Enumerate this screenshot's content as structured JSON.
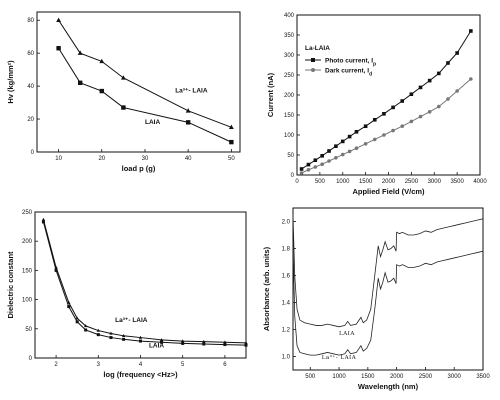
{
  "chart_data": [
    {
      "type": "line",
      "xlabel": "load p (g)",
      "ylabel": "Hv (kg/mm²)",
      "xlim": [
        5,
        52
      ],
      "ylim": [
        0,
        85
      ],
      "xticks": [
        10,
        20,
        30,
        40,
        50
      ],
      "yticks": [
        0,
        20,
        40,
        60,
        80
      ],
      "series": [
        {
          "name": "La³⁺- LAIA",
          "marker": "triangle",
          "x": [
            10,
            15,
            20,
            25,
            40,
            50
          ],
          "y": [
            80,
            60,
            55,
            45,
            25,
            15
          ]
        },
        {
          "name": "LAIA",
          "marker": "square",
          "x": [
            10,
            15,
            20,
            25,
            40,
            50
          ],
          "y": [
            63,
            42,
            37,
            27,
            18,
            6
          ]
        }
      ],
      "annotations": [
        {
          "text": "La³⁺- LAIA",
          "x": 37,
          "y": 36
        },
        {
          "text": "LAIA",
          "x": 30,
          "y": 17
        }
      ],
      "grid": false
    },
    {
      "type": "line",
      "xlabel": "Applied Field (V/cm)",
      "ylabel": "Current (nA)",
      "xlim": [
        0,
        4000
      ],
      "ylim": [
        0,
        400
      ],
      "xticks": [
        0,
        500,
        1000,
        1500,
        2000,
        2500,
        3000,
        3500,
        4000
      ],
      "yticks": [
        0,
        50,
        100,
        150,
        200,
        250,
        300,
        350,
        400
      ],
      "legend_title": "La-LAIA",
      "legend_position": "top-left",
      "series": [
        {
          "name": "Photo current, I",
          "subscript": "p",
          "marker": "square",
          "color": "#111111",
          "x": [
            100,
            250,
            400,
            550,
            700,
            850,
            1000,
            1150,
            1300,
            1500,
            1700,
            1900,
            2100,
            2300,
            2500,
            2700,
            2900,
            3100,
            3300,
            3500,
            3800
          ],
          "y": [
            15,
            26,
            37,
            48,
            60,
            72,
            84,
            96,
            108,
            122,
            138,
            153,
            169,
            185,
            202,
            219,
            236,
            254,
            280,
            305,
            360
          ]
        },
        {
          "name": "Dark current, I",
          "subscript": "d",
          "marker": "circle",
          "color": "#777777",
          "x": [
            100,
            250,
            400,
            550,
            700,
            850,
            1000,
            1150,
            1300,
            1500,
            1700,
            1900,
            2100,
            2300,
            2500,
            2700,
            2900,
            3100,
            3300,
            3500,
            3800
          ],
          "y": [
            5,
            13,
            20,
            27,
            35,
            43,
            51,
            59,
            67,
            78,
            89,
            100,
            111,
            122,
            134,
            146,
            158,
            171,
            190,
            210,
            240
          ]
        }
      ],
      "grid": false
    },
    {
      "type": "line",
      "xlabel": "log (frequency <Hz>)",
      "ylabel": "Dielectric constant",
      "xlim": [
        1.5,
        6.5
      ],
      "ylim": [
        0,
        250
      ],
      "xticks": [
        2,
        3,
        4,
        5,
        6
      ],
      "yticks": [
        0,
        50,
        100,
        150,
        200,
        250
      ],
      "series": [
        {
          "name": "La³⁺- LAIA",
          "marker": "triangle",
          "x": [
            1.7,
            2.0,
            2.3,
            2.5,
            2.7,
            3.0,
            3.3,
            3.6,
            4.0,
            4.5,
            5.0,
            5.5,
            6.0,
            6.5
          ],
          "y": [
            237,
            155,
            95,
            68,
            55,
            47,
            42,
            38,
            35,
            31,
            29,
            28,
            27,
            26
          ]
        },
        {
          "name": "LAIA",
          "marker": "square",
          "x": [
            1.7,
            2.0,
            2.3,
            2.5,
            2.7,
            3.0,
            3.3,
            3.6,
            4.0,
            4.5,
            5.0,
            5.5,
            6.0,
            6.5
          ],
          "y": [
            233,
            150,
            88,
            62,
            48,
            40,
            35,
            32,
            29,
            27,
            25,
            24,
            23,
            22
          ]
        }
      ],
      "annotations": [
        {
          "text": "La³⁺- LAIA",
          "x": 3.4,
          "y": 62
        },
        {
          "text": "LAIA",
          "x": 4.2,
          "y": 18
        }
      ],
      "grid": false
    },
    {
      "type": "line",
      "xlabel": "Wavelength (nm)",
      "ylabel": "Absorbance (arb. units)",
      "xlim": [
        200,
        3500
      ],
      "ylim": [
        0.9,
        2.1
      ],
      "xticks": [
        500,
        1000,
        1500,
        2000,
        2500,
        3000,
        3500
      ],
      "xticklabels": [
        "500",
        "1000",
        "1500",
        "2000",
        "2500",
        "3000",
        "3500"
      ],
      "yticks": [
        1.0,
        1.2,
        1.4,
        1.6,
        1.8,
        2.0
      ],
      "yticklabels": [
        "1.0",
        "1.2",
        "1.4",
        "1.6",
        "1.8",
        "2.0"
      ],
      "series": [
        {
          "name": "LAIA",
          "x": [
            200,
            230,
            270,
            320,
            400,
            500,
            600,
            700,
            800,
            900,
            1000,
            1100,
            1150,
            1200,
            1300,
            1380,
            1420,
            1480,
            1550,
            1620,
            1680,
            1720,
            1760,
            1800,
            1850,
            1900,
            1950,
            1990,
            2000,
            2050,
            2100,
            2200,
            2300,
            2400,
            2500,
            2600,
            2700,
            2800,
            2900,
            3000,
            3100,
            3200,
            3300,
            3400,
            3500
          ],
          "y": [
            2.05,
            1.6,
            1.35,
            1.27,
            1.25,
            1.24,
            1.23,
            1.23,
            1.24,
            1.23,
            1.22,
            1.23,
            1.26,
            1.23,
            1.24,
            1.29,
            1.25,
            1.27,
            1.35,
            1.6,
            1.82,
            1.74,
            1.79,
            1.85,
            1.79,
            1.8,
            1.82,
            1.78,
            1.92,
            1.91,
            1.92,
            1.9,
            1.9,
            1.91,
            1.93,
            1.92,
            1.94,
            1.95,
            1.96,
            1.97,
            1.98,
            1.99,
            2.0,
            2.01,
            2.02
          ]
        },
        {
          "name": "La³⁺- LAIA",
          "x": [
            200,
            230,
            270,
            320,
            400,
            500,
            600,
            700,
            800,
            900,
            1000,
            1100,
            1150,
            1200,
            1300,
            1380,
            1420,
            1480,
            1550,
            1620,
            1680,
            1720,
            1760,
            1800,
            1850,
            1900,
            1950,
            1990,
            2000,
            2050,
            2100,
            2200,
            2300,
            2400,
            2500,
            2600,
            2700,
            2800,
            2900,
            3000,
            3100,
            3200,
            3300,
            3400,
            3500
          ],
          "y": [
            1.85,
            1.3,
            1.08,
            1.03,
            1.02,
            1.01,
            1.01,
            1.02,
            1.03,
            1.02,
            1.01,
            1.02,
            1.05,
            1.02,
            1.03,
            1.08,
            1.04,
            1.06,
            1.12,
            1.35,
            1.58,
            1.5,
            1.55,
            1.62,
            1.55,
            1.56,
            1.58,
            1.54,
            1.68,
            1.67,
            1.68,
            1.66,
            1.66,
            1.67,
            1.69,
            1.68,
            1.7,
            1.71,
            1.72,
            1.73,
            1.74,
            1.75,
            1.76,
            1.77,
            1.78
          ]
        }
      ],
      "annotations": [
        {
          "text": "LAIA",
          "x": 1000,
          "y": 1.16
        },
        {
          "text": "La³⁺- LAIA",
          "x": 700,
          "y": 0.98
        }
      ],
      "grid": false
    }
  ]
}
